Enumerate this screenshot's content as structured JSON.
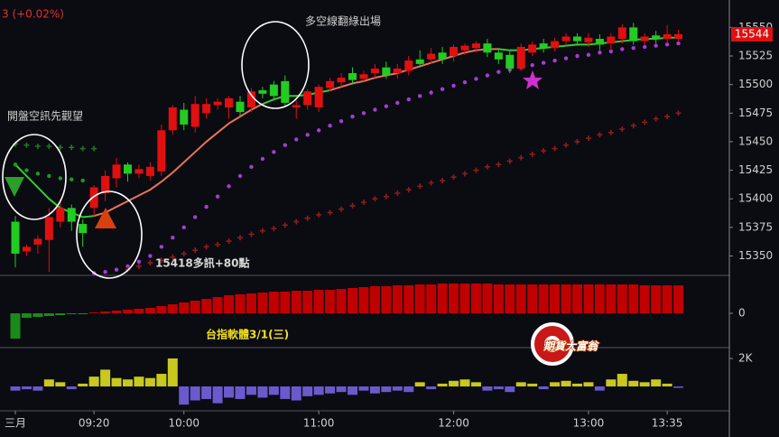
{
  "chart_data": [
    {
      "type": "candlestick",
      "title": "台指軟體3/1(三)",
      "annotations": [
        "3 (+0.02%)",
        "開盤空訊先觀望",
        "多空線翻綠出場",
        "15418多訊+80點"
      ],
      "categories": [
        "三月",
        null,
        null,
        null,
        null,
        null,
        null,
        "09:20",
        null,
        null,
        null,
        null,
        null,
        null,
        null,
        "10:00",
        null,
        null,
        null,
        null,
        null,
        null,
        null,
        null,
        null,
        null,
        null,
        "11:00",
        null,
        null,
        null,
        null,
        null,
        null,
        null,
        null,
        null,
        null,
        null,
        "12:00",
        null,
        null,
        null,
        null,
        null,
        null,
        null,
        null,
        null,
        null,
        null,
        "13:00",
        null,
        null,
        null,
        null,
        null,
        null,
        "13:35",
        null
      ],
      "open": [
        15380,
        15354,
        15360,
        15364,
        15380,
        15392,
        15378,
        15392,
        15405,
        15418,
        15430,
        15422,
        15420,
        15424,
        15460,
        15478,
        15463,
        15475,
        15482,
        15480,
        15485,
        15480,
        15495,
        15500,
        15503,
        15480,
        15482,
        15480,
        15497,
        15502,
        15510,
        15505,
        15510,
        15515,
        15510,
        15512,
        15522,
        15522,
        15528,
        15525,
        15530,
        15532,
        15536,
        15528,
        15526,
        15514,
        15528,
        15536,
        15532,
        15538,
        15542,
        15537,
        15540,
        15536,
        15540,
        15550,
        15538,
        15543,
        15540,
        15540
      ],
      "high": [
        15385,
        15360,
        15368,
        15392,
        15400,
        15395,
        15382,
        15412,
        15425,
        15436,
        15432,
        15430,
        15432,
        15465,
        15482,
        15484,
        15490,
        15488,
        15488,
        15490,
        15490,
        15497,
        15498,
        15503,
        15508,
        15486,
        15496,
        15500,
        15506,
        15510,
        15515,
        15512,
        15518,
        15520,
        15518,
        15525,
        15530,
        15532,
        15533,
        15535,
        15536,
        15538,
        15540,
        15532,
        15530,
        15536,
        15538,
        15540,
        15541,
        15545,
        15545,
        15545,
        15544,
        15545,
        15553,
        15554,
        15545,
        15547,
        15552,
        15548
      ],
      "low": [
        15340,
        15350,
        15352,
        15336,
        15375,
        15372,
        15358,
        15385,
        15398,
        15410,
        15415,
        15418,
        15416,
        15420,
        15456,
        15460,
        15458,
        15470,
        15478,
        15470,
        15472,
        15476,
        15488,
        15486,
        15482,
        15470,
        15478,
        15476,
        15494,
        15498,
        15500,
        15502,
        15506,
        15505,
        15505,
        15508,
        15515,
        15518,
        15518,
        15520,
        15526,
        15528,
        15524,
        15518,
        15510,
        15512,
        15525,
        15528,
        15529,
        15534,
        15534,
        15533,
        15530,
        15530,
        15536,
        15535,
        15535,
        15536,
        15537,
        15538
      ],
      "close": [
        15352,
        15358,
        15365,
        15384,
        15392,
        15380,
        15370,
        15410,
        15420,
        15430,
        15422,
        15426,
        15428,
        15460,
        15480,
        15465,
        15483,
        15483,
        15485,
        15488,
        15476,
        15494,
        15492,
        15490,
        15484,
        15482,
        15494,
        15498,
        15503,
        15506,
        15504,
        15509,
        15514,
        15508,
        15514,
        15521,
        15518,
        15527,
        15522,
        15533,
        15534,
        15536,
        15528,
        15522,
        15514,
        15533,
        15535,
        15532,
        15538,
        15542,
        15538,
        15541,
        15535,
        15542,
        15550,
        15538,
        15542,
        15540,
        15544,
        15544
      ],
      "up_color": "#e01010",
      "down_color": "#22cc22",
      "series": [
        {
          "style": "line",
          "color": "#e8735a",
          "values": [
            null,
            null,
            null,
            null,
            null,
            null,
            null,
            15385,
            15388,
            15393,
            15398,
            15403,
            15408,
            15415,
            15423,
            15432,
            15441,
            15450,
            15458,
            15466,
            15472,
            15478,
            15483,
            null,
            null,
            null,
            null,
            null,
            15495,
            15498,
            15501,
            15503,
            15506,
            15508,
            15510,
            15513,
            15516,
            15519,
            15522,
            15525,
            15528,
            15530,
            15531,
            15531,
            null,
            null,
            null,
            null,
            null,
            null,
            null,
            null,
            null,
            null,
            null,
            null,
            null,
            null,
            null,
            null
          ]
        },
        {
          "style": "line",
          "color": "#2fcf2f",
          "values": [
            15430,
            15420,
            15410,
            15400,
            15392,
            15388,
            15384,
            15385,
            null,
            null,
            null,
            null,
            null,
            null,
            null,
            null,
            null,
            null,
            null,
            null,
            null,
            null,
            15483,
            15487,
            15490,
            15490,
            15491,
            15493,
            15495,
            null,
            null,
            null,
            null,
            null,
            null,
            null,
            null,
            null,
            null,
            null,
            null,
            null,
            null,
            15531,
            15530,
            15530,
            15531,
            15532,
            15533,
            15534,
            15535,
            15535,
            15536,
            15537,
            15538,
            15539,
            15540,
            15540,
            15541,
            15541
          ]
        },
        {
          "style": "dot",
          "color": "#a23fd0",
          "values": [
            null,
            null,
            null,
            null,
            null,
            null,
            null,
            15335,
            15336,
            15338,
            15341,
            15345,
            15350,
            15358,
            15366,
            15375,
            15384,
            15393,
            15402,
            15411,
            15420,
            15428,
            15435,
            15441,
            15447,
            15452,
            15456,
            15460,
            15464,
            15468,
            15472,
            15475,
            15478,
            15481,
            15484,
            15487,
            15490,
            15493,
            15496,
            15499,
            15502,
            15505,
            15508,
            15511,
            15513,
            15515,
            15517,
            15519,
            15521,
            15523,
            15525,
            15526,
            15528,
            15529,
            15531,
            15532,
            15533,
            15534,
            15535,
            15536
          ]
        },
        {
          "style": "dot",
          "color": "#1f9a1f",
          "values": [
            15430,
            15425,
            15422,
            15420,
            15418,
            15417,
            15416,
            null,
            null,
            null,
            null,
            null,
            null,
            null,
            null,
            null,
            null,
            null,
            null,
            null,
            null,
            null,
            null,
            null,
            null,
            null,
            null,
            null,
            null,
            null,
            null,
            null,
            null,
            null,
            null,
            null,
            null,
            null,
            null,
            null,
            null,
            null,
            null,
            null,
            null,
            null,
            null,
            null,
            null,
            null,
            null,
            null,
            null,
            null,
            null,
            null,
            null,
            null,
            null,
            null
          ]
        },
        {
          "style": "cross",
          "color": "#1c7a1c",
          "values": [
            15448,
            15447,
            15446,
            15446,
            15445,
            15445,
            15444,
            15444,
            null,
            null,
            null,
            null,
            null,
            null,
            null,
            null,
            null,
            null,
            null,
            null,
            null,
            null,
            null,
            null,
            null,
            null,
            null,
            null,
            null,
            null,
            null,
            null,
            null,
            null,
            null,
            null,
            null,
            null,
            null,
            null,
            null,
            null,
            null,
            null,
            null,
            null,
            null,
            null,
            null,
            null,
            null,
            null,
            null,
            null,
            null,
            null,
            null,
            null,
            null,
            null
          ]
        },
        {
          "style": "cross",
          "color": "#8e1c1c",
          "values": [
            null,
            null,
            null,
            null,
            null,
            null,
            null,
            null,
            null,
            null,
            15338,
            15341,
            15344,
            15346,
            15349,
            15352,
            15355,
            15358,
            15360,
            15363,
            15366,
            15369,
            15372,
            15374,
            15377,
            15380,
            15383,
            15386,
            15388,
            15391,
            15394,
            15397,
            15400,
            15402,
            15405,
            15408,
            15411,
            15414,
            15416,
            15419,
            15422,
            15425,
            15428,
            15430,
            15433,
            15436,
            15439,
            15442,
            15444,
            15447,
            15450,
            15453,
            15456,
            15458,
            15461,
            15464,
            15467,
            15470,
            15472,
            15475
          ]
        }
      ],
      "last_price": 15544,
      "last_color": "#e01010",
      "ylim": [
        15333,
        15574
      ],
      "yticks": [
        15350,
        15375,
        15400,
        15425,
        15450,
        15475,
        15500,
        15525,
        15550
      ]
    },
    {
      "type": "bar",
      "values": [
        -28,
        -5,
        -4,
        -3,
        -2,
        -1,
        -1,
        1,
        2,
        3,
        4,
        5,
        6,
        8,
        10,
        12,
        14,
        16,
        18,
        20,
        21,
        22,
        23,
        24,
        24,
        25,
        25,
        26,
        26,
        27,
        28,
        29,
        30,
        30,
        31,
        31,
        32,
        32,
        33,
        33,
        33,
        33,
        33,
        32,
        32,
        32,
        32,
        32,
        32,
        32,
        32,
        32,
        32,
        32,
        32,
        32,
        31,
        31,
        31,
        31
      ],
      "up_color": "#c00000",
      "down_color": "#1a8a1a",
      "ylim": [
        -38,
        42
      ],
      "yticks": [
        0
      ]
    },
    {
      "type": "bar",
      "values": [
        -300,
        -200,
        -300,
        500,
        300,
        -200,
        200,
        700,
        1200,
        600,
        500,
        700,
        600,
        900,
        2000,
        -1300,
        -1000,
        -900,
        -1200,
        -800,
        -900,
        -600,
        -800,
        -600,
        -900,
        -1000,
        -700,
        -600,
        -500,
        -400,
        -600,
        -300,
        -500,
        -400,
        -300,
        -400,
        300,
        -200,
        200,
        400,
        500,
        300,
        -300,
        -200,
        -400,
        300,
        200,
        -200,
        300,
        400,
        200,
        300,
        -300,
        500,
        900,
        400,
        300,
        500,
        200,
        -100
      ],
      "up_color": "#c8c81e",
      "down_color": "#6a5acd",
      "ylim": [
        -1742,
        2774
      ],
      "yticks": [
        {
          "value": 2000,
          "label": "2K"
        }
      ]
    }
  ],
  "logo": "期貨大富翁"
}
